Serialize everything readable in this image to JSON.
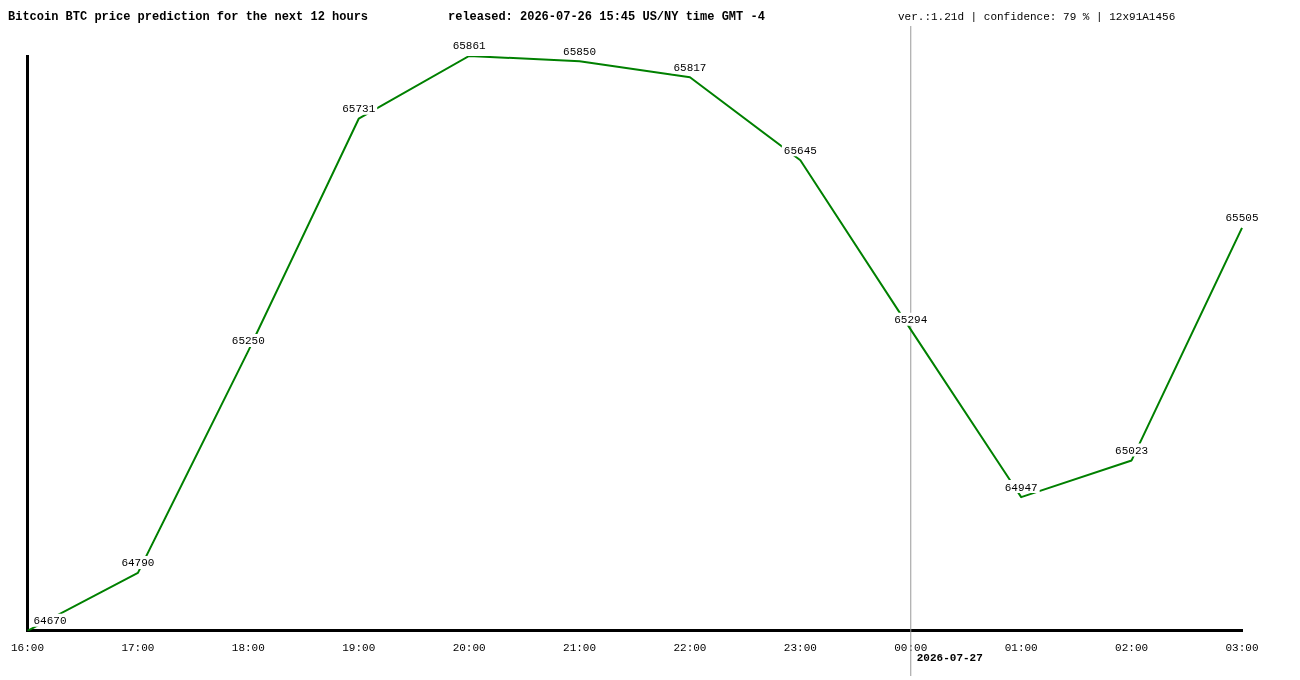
{
  "chart_data": {
    "type": "line",
    "title": "Bitcoin BTC price prediction for the next 12 hours",
    "subtitle": "released: 2026-07-26 15:45 US/NY time GMT -4",
    "annotations": [
      "ver.:1.21d | confidence: 79 % | 12x91A1456"
    ],
    "categories": [
      "16:00",
      "17:00",
      "18:00",
      "19:00",
      "20:00",
      "21:00",
      "22:00",
      "23:00",
      "00:00",
      "01:00",
      "02:00",
      "03:00"
    ],
    "series": [
      {
        "color": "#008000",
        "values": [
          64670,
          64790,
          65250,
          65731,
          65861,
          65850,
          65817,
          65645,
          65294,
          64947,
          65023,
          65505
        ]
      }
    ],
    "ylim": [
      64670,
      65861
    ],
    "tick_labels": "x",
    "data_labels": true,
    "grid": false,
    "legend": false,
    "marker": "none",
    "line_style": "solid",
    "ref_lines": [
      {
        "axis": "x",
        "value": "00:00",
        "label": "2026-07-27",
        "color": "#999999"
      }
    ]
  }
}
